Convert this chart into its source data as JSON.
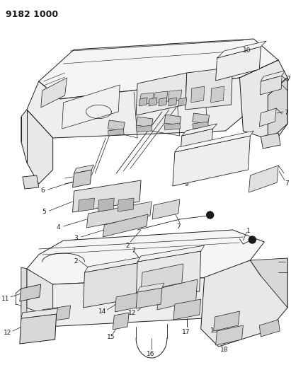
{
  "title_code": "9182 1000",
  "bg_color": "#ffffff",
  "line_color": "#1a1a1a",
  "fig_width": 4.11,
  "fig_height": 5.33,
  "dpi": 100,
  "label_fontsize": 6.5,
  "title_fontsize": 9
}
